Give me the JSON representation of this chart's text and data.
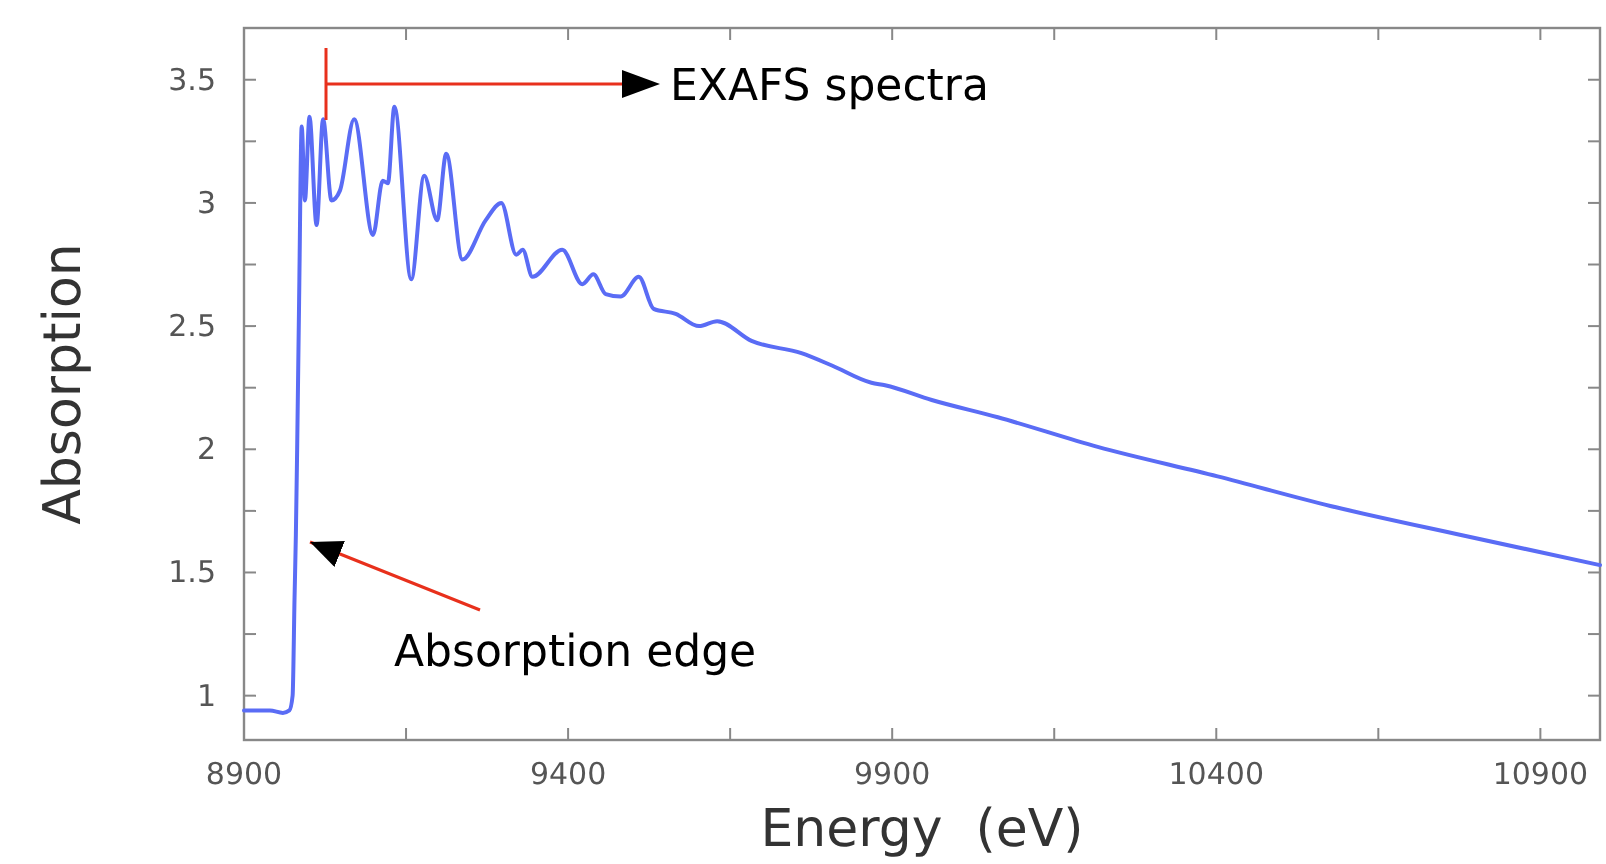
{
  "chart_data": {
    "type": "line",
    "xlabel": "Energy  (eV)",
    "ylabel": "Absorption",
    "xlim": [
      8900,
      10992
    ],
    "ylim": [
      0.82,
      3.71
    ],
    "xticks": [
      8900,
      {
        "value": 9150,
        "label": null
      },
      9400,
      {
        "value": 9650,
        "label": null
      },
      9900,
      {
        "value": 10150,
        "label": null
      },
      10400,
      {
        "value": 10650,
        "label": null
      },
      10900
    ],
    "yticks": [
      1,
      {
        "value": 1.25,
        "label": null
      },
      1.5,
      {
        "value": 1.75,
        "label": null
      },
      2,
      {
        "value": 2.25,
        "label": null
      },
      2.5,
      {
        "value": 2.75,
        "label": null
      },
      3,
      {
        "value": 3.25,
        "label": null
      },
      3.5
    ],
    "grid": false,
    "marker": "none",
    "line_style": "solid",
    "series": [
      {
        "color": "#5a6cf5",
        "x": [
          8900,
          8940,
          8960,
          8970,
          8975,
          8978,
          8980,
          8982,
          8985,
          8989,
          8994,
          9001,
          9012,
          9022,
          9035,
          9048,
          9070,
          9099,
          9114,
          9122,
          9132,
          9158,
          9178,
          9198,
          9212,
          9237,
          9273,
          9297,
          9320,
          9330,
          9345,
          9391,
          9422,
          9439,
          9458,
          9481,
          9509,
          9532,
          9566,
          9602,
          9630,
          9683,
          9760,
          9807,
          9868,
          9889,
          9961,
          10063,
          10217,
          10402,
          10576,
          10781,
          10992
        ],
        "values": [
          0.94,
          0.94,
          0.93,
          0.94,
          1.0,
          1.4,
          1.65,
          2.0,
          2.6,
          3.31,
          3.01,
          3.35,
          2.91,
          3.34,
          3.01,
          3.05,
          3.34,
          2.87,
          3.09,
          3.08,
          3.39,
          2.69,
          3.11,
          2.93,
          3.2,
          2.77,
          2.93,
          3.0,
          2.79,
          2.81,
          2.7,
          2.81,
          2.67,
          2.71,
          2.63,
          2.62,
          2.7,
          2.57,
          2.55,
          2.5,
          2.52,
          2.44,
          2.39,
          2.34,
          2.27,
          2.26,
          2.2,
          2.13,
          2.01,
          1.89,
          1.77,
          1.65,
          1.53
        ]
      }
    ],
    "annotations": [
      "EXAFS spectra",
      "Absorption edge"
    ]
  }
}
